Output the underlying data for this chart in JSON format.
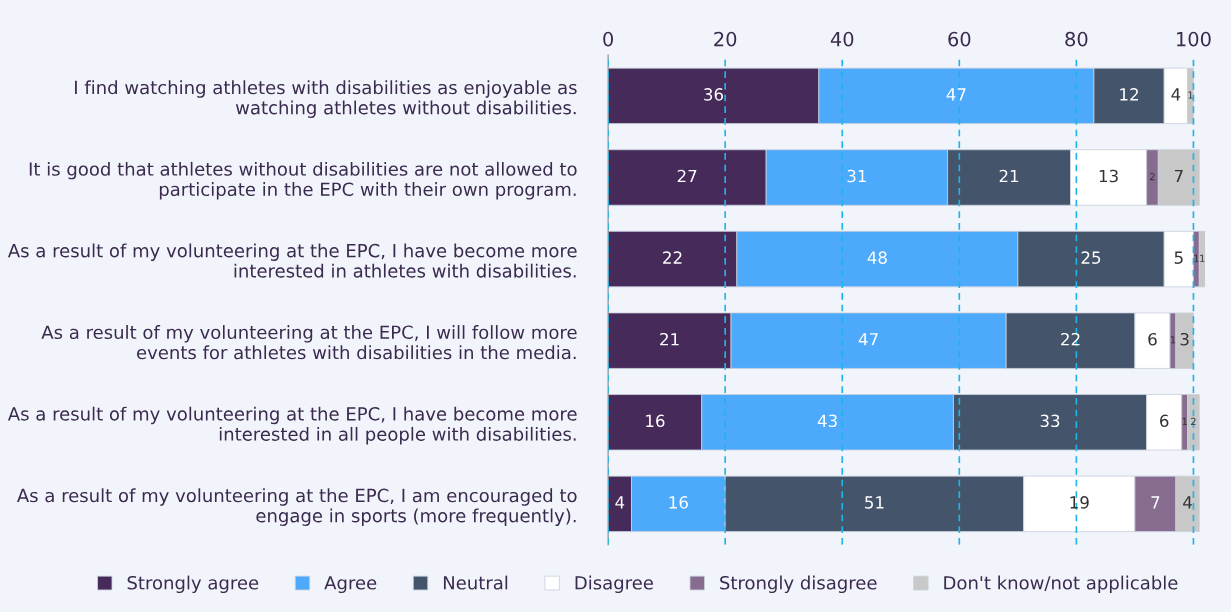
{
  "chart_data": {
    "type": "bar",
    "orientation": "horizontal",
    "stacked": true,
    "grid": "x",
    "legend": "bottom",
    "categories": [
      "I find watching athletes with disabilities as enjoyable as\nwatching athletes without disabilities.",
      "It is good that athletes without disabilities are not allowed to\nparticipate in the EPC with their own program.",
      "As a result of my volunteering at the EPC, I have become more\ninterested in athletes with disabilities.",
      "As a result of my volunteering at the EPC, I will follow more\nevents for athletes with disabilities in the media.",
      "As a result of my volunteering at the EPC, I have become more\ninterested in all people with disabilities.",
      "As a result of my volunteering at the EPC, I am encouraged to\nengage in sports (more frequently)."
    ],
    "xlim": [
      0,
      102
    ],
    "xticks": [
      0,
      20,
      40,
      60,
      80,
      100
    ],
    "series": [
      {
        "name": "Strongly agree",
        "color": "#452a5a",
        "values": [
          36,
          27,
          22,
          21,
          16,
          4
        ],
        "value_labels": [
          "36",
          "27",
          "22",
          "21",
          "16",
          "4"
        ]
      },
      {
        "name": "Agree",
        "color": "#4da9fc",
        "values": [
          47,
          31,
          48,
          47,
          43,
          16
        ],
        "value_labels": [
          "47",
          "31",
          "48",
          "47",
          "43",
          "16"
        ]
      },
      {
        "name": "Neutral",
        "color": "#44546a",
        "values": [
          12,
          21,
          25,
          22,
          33,
          51
        ],
        "value_labels": [
          "12",
          "21",
          "25",
          "22",
          "33",
          "51"
        ]
      },
      {
        "name": "Disagree",
        "color": "#ffffff",
        "values": [
          4,
          13,
          5,
          6,
          6,
          19
        ],
        "value_labels": [
          "4",
          "13",
          "5",
          "6",
          "6",
          "19"
        ]
      },
      {
        "name": "Strongly disagree",
        "color": "#876c90",
        "values": [
          0,
          2,
          1,
          1,
          1,
          7
        ],
        "value_labels": [
          null,
          "2",
          "1",
          "1",
          "1",
          "7"
        ]
      },
      {
        "name": "Don't know/not applicable",
        "color": "#c8c8c8",
        "values": [
          1,
          7,
          1,
          3,
          2,
          4
        ],
        "value_labels": [
          "1",
          "7",
          "1",
          "3",
          "2",
          "4"
        ]
      }
    ]
  }
}
